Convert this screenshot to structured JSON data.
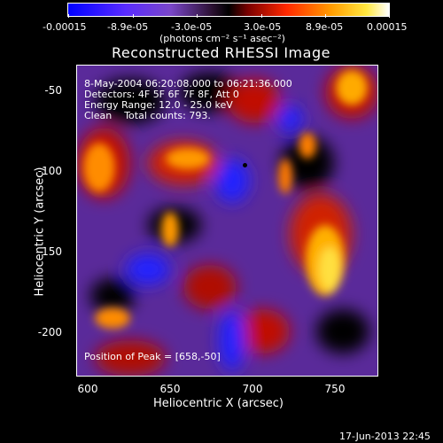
{
  "colorbar": {
    "tick_labels": [
      "-0.00015",
      "-8.9e-05",
      "-3.0e-05",
      "3.0e-05",
      "8.9e-05",
      "0.00015"
    ],
    "units": "(photons cm⁻² s⁻¹ asec⁻²)"
  },
  "title": "Reconstructed RHESSI Image",
  "info": {
    "time_range": "8-May-2004 06:20:08.000 to 06:21:36.000",
    "detectors": "Detectors: 4F 5F 6F 7F 8F, Att 0",
    "energy": "Energy Range: 12.0 - 25.0 keV",
    "method": "Clean    Total counts: 793.",
    "peak": "Position of Peak = [658,-50]"
  },
  "axes": {
    "xlabel": "Heliocentric X (arcsec)",
    "ylabel": "Heliocentric Y (arcsec)",
    "xticks": [
      "600",
      "650",
      "700",
      "750"
    ],
    "yticks": [
      "-50",
      "-100",
      "-150",
      "-200"
    ]
  },
  "footer": "17-Jun-2013 22:45",
  "colors": {
    "colormap": [
      "#0000ff",
      "#4a2aff",
      "#7a3ccf",
      "#000000",
      "#8a0000",
      "#ff2a00",
      "#ff9a00",
      "#ffe040",
      "#ffffff"
    ]
  }
}
